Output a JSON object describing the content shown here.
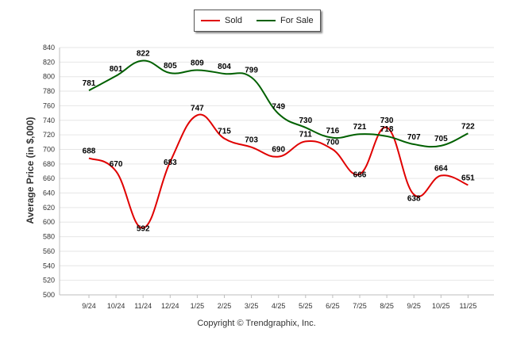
{
  "chart_data": {
    "type": "line",
    "title": "",
    "xlabel": "",
    "ylabel": "Average Price (in $,000)",
    "ylim": [
      500,
      840
    ],
    "ytick_step": 20,
    "categories": [
      "9/24",
      "10/24",
      "11/24",
      "12/24",
      "1/25",
      "2/25",
      "3/25",
      "4/25",
      "5/25",
      "6/25",
      "7/25",
      "8/25",
      "9/25",
      "10/25",
      "11/25"
    ],
    "series": [
      {
        "name": "Sold",
        "color": "#e00000",
        "values": [
          688,
          670,
          592,
          683,
          747,
          715,
          703,
          690,
          711,
          700,
          666,
          730,
          638,
          664,
          651
        ]
      },
      {
        "name": "For Sale",
        "color": "#006000",
        "values": [
          781,
          801,
          822,
          805,
          809,
          804,
          799,
          749,
          730,
          716,
          721,
          718,
          707,
          705,
          722
        ]
      }
    ],
    "legend_position": "top-center",
    "grid": true
  },
  "legend": {
    "sold_label": "Sold",
    "for_sale_label": "For Sale"
  },
  "footer": {
    "copyright": "Copyright © Trendgraphix, Inc."
  }
}
